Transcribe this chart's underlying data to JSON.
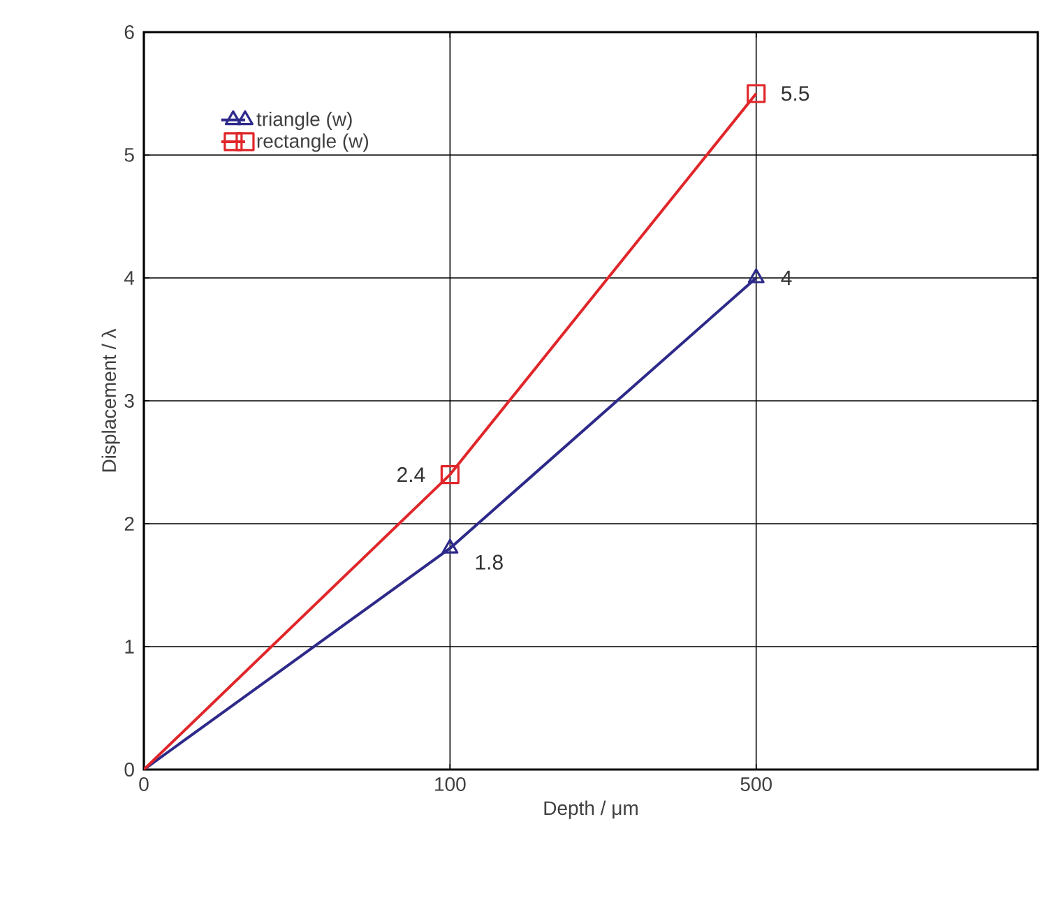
{
  "chart_data": {
    "type": "line",
    "xlabel": "Depth / μm",
    "ylabel": "Displacement / λ",
    "categories": [
      "0",
      "100",
      "500"
    ],
    "series": [
      {
        "name": "triangle (w)",
        "color": "#2e2a8a",
        "marker": "triangle",
        "values": [
          0,
          1.8,
          4
        ],
        "value_labels": [
          null,
          "1.8",
          "4"
        ]
      },
      {
        "name": "rectangle (w)",
        "color": "#e0262a",
        "marker": "square",
        "values": [
          0,
          2.4,
          5.5
        ],
        "value_labels": [
          null,
          "2.4",
          "5.5"
        ]
      }
    ],
    "ylim": [
      0,
      6
    ],
    "yticks": [
      0,
      1,
      2,
      3,
      4,
      5,
      6
    ],
    "grid": true,
    "legend": "top left",
    "line_style": "solid"
  }
}
